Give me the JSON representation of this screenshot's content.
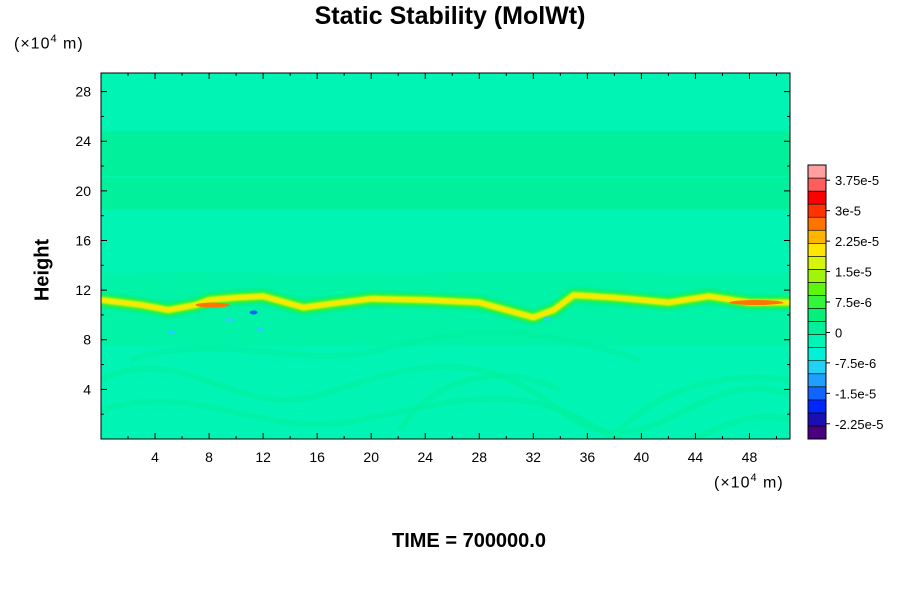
{
  "title": "Static Stability (MolWt)",
  "time_label": "TIME = 700000.0",
  "y_unit": {
    "base": "(×10",
    "exp": "4",
    "rest": " m)"
  },
  "x_unit": {
    "base": "(×10",
    "exp": "4",
    "rest": " m)"
  },
  "chart_data": {
    "type": "heatmap",
    "title": "Static Stability (MolWt)",
    "ylabel": "Height",
    "xlabel": "",
    "x_ticks": [
      "4",
      "8",
      "12",
      "16",
      "20",
      "24",
      "28",
      "32",
      "36",
      "40",
      "44",
      "48"
    ],
    "y_ticks": [
      "4",
      "8",
      "12",
      "16",
      "20",
      "24",
      "28"
    ],
    "xlim": [
      0,
      51
    ],
    "ylim": [
      0,
      29.5
    ],
    "colorbar": {
      "min": -2.625e-05,
      "max": 4.125e-05,
      "step": 3.75e-06,
      "tick_values": [
        3.75e-05,
        3e-05,
        2.25e-05,
        1.5e-05,
        7.5e-06,
        0,
        -7.5e-06,
        -1.5e-05,
        -2.25e-05
      ],
      "tick_labels": [
        "3.75e-5",
        "3e-5",
        "2.25e-5",
        "1.5e-5",
        "7.5e-6",
        "0",
        "-7.5e-6",
        "-1.5e-5",
        "-2.25e-5"
      ],
      "colors": [
        "#4b0082",
        "#1a0fb4",
        "#0026ff",
        "#1264ff",
        "#1ea0ff",
        "#22d2f5",
        "#00f0d8",
        "#00f5b4",
        "#00f09c",
        "#05f07a",
        "#33f53c",
        "#5ef50f",
        "#a0f50a",
        "#d7f50a",
        "#ffe600",
        "#ffb400",
        "#ff7300",
        "#ff3300",
        "#ff0000",
        "#ff5c5c",
        "#ffa0a0"
      ]
    },
    "tropopause_band": {
      "x": [
        0,
        3,
        5,
        7,
        8,
        10,
        12,
        13,
        15,
        17,
        20,
        24,
        28,
        30,
        32,
        33.5,
        35,
        38,
        42,
        45,
        48,
        51
      ],
      "y": [
        11.2,
        10.8,
        10.4,
        10.8,
        11.2,
        11.4,
        11.5,
        11.2,
        10.6,
        10.9,
        11.3,
        11.2,
        11.0,
        10.4,
        9.8,
        10.4,
        11.6,
        11.4,
        11.0,
        11.5,
        11.0,
        11.0
      ],
      "peak_value": 3.5e-05
    },
    "grid": false
  }
}
